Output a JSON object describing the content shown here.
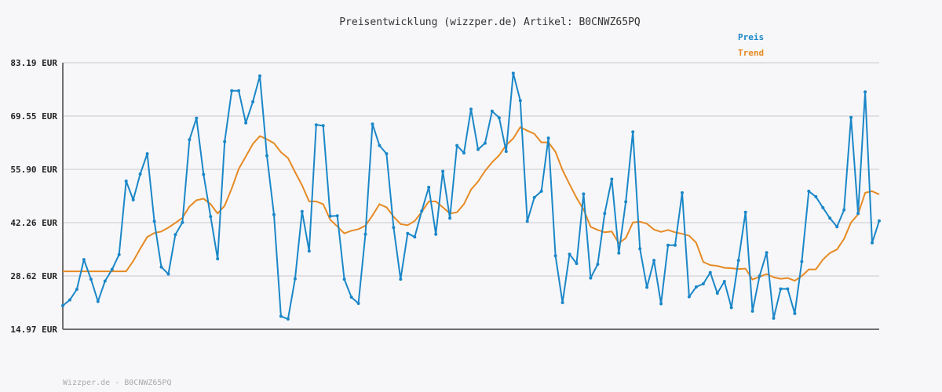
{
  "chart_data": {
    "type": "line",
    "title": "Preisentwicklung (wizzper.de) Artikel: B0CNWZ65PQ",
    "ylim": [
      14.97,
      83.19
    ],
    "yticks": [
      "83.19 EUR",
      "69.55 EUR",
      "55.90 EUR",
      "42.26 EUR",
      "28.62 EUR",
      "14.97 EUR"
    ],
    "ytick_values": [
      83.19,
      69.55,
      55.9,
      42.26,
      28.62,
      14.97
    ],
    "grid": true,
    "legend_placement": "top-right",
    "series": [
      {
        "name": "Preis",
        "color": "#1b87c8",
        "values": [
          21.0,
          22.5,
          25.2,
          32.8,
          27.8,
          22.1,
          27.3,
          30.3,
          34.1,
          52.9,
          48.1,
          54.7,
          59.9,
          42.6,
          30.9,
          29.1,
          39.2,
          42.3,
          63.5,
          69.0,
          54.6,
          43.8,
          33.0,
          63.0,
          76.0,
          76.0,
          67.8,
          73.2,
          79.8,
          59.4,
          44.3,
          18.3,
          17.6,
          27.9,
          45.1,
          35.0,
          67.3,
          67.1,
          43.9,
          44.0,
          27.8,
          23.2,
          21.6,
          39.3,
          67.5,
          62.0,
          59.9,
          41.0,
          27.8,
          39.5,
          38.6,
          45.2,
          51.3,
          39.3,
          55.4,
          43.4,
          62.0,
          60.1,
          71.3,
          61.0,
          62.6,
          70.8,
          69.1,
          60.5,
          80.5,
          73.5,
          42.6,
          48.7,
          50.3,
          63.9,
          33.8,
          21.8,
          34.2,
          31.8,
          49.6,
          28.1,
          31.6,
          44.6,
          53.4,
          34.5,
          47.6,
          65.5,
          35.6,
          25.7,
          32.6,
          21.5,
          36.5,
          36.5,
          49.9,
          23.3,
          25.8,
          26.6,
          29.5,
          24.2,
          27.2,
          20.5,
          32.6,
          44.9,
          19.6,
          28.6,
          34.6,
          17.8,
          25.3,
          25.3,
          19.0,
          32.3,
          50.3,
          48.9,
          46.1,
          43.4,
          41.2,
          45.5,
          69.2,
          44.6,
          75.7,
          37.1,
          42.7
        ]
      },
      {
        "name": "Trend",
        "color": "#e68a24",
        "values": [
          29.8,
          29.8,
          29.8,
          29.8,
          29.8,
          29.8,
          29.8,
          29.8,
          29.8,
          29.8,
          32.4,
          35.6,
          38.6,
          39.6,
          40.0,
          41.0,
          42.2,
          43.5,
          46.4,
          48.0,
          48.4,
          47.0,
          44.6,
          46.6,
          51.0,
          56.0,
          59.2,
          62.4,
          64.4,
          63.6,
          62.6,
          60.3,
          58.8,
          55.2,
          51.8,
          47.7,
          47.7,
          47.0,
          43.0,
          41.3,
          39.5,
          40.2,
          40.6,
          41.5,
          44.1,
          47.0,
          46.2,
          43.8,
          41.9,
          41.6,
          42.7,
          45.0,
          47.7,
          47.7,
          46.2,
          44.6,
          44.9,
          47.0,
          50.7,
          52.8,
          55.5,
          57.7,
          59.5,
          62.1,
          63.8,
          66.7,
          65.8,
          65.0,
          62.8,
          62.8,
          60.4,
          55.7,
          52.1,
          48.6,
          45.6,
          41.2,
          40.4,
          39.8,
          40.0,
          37.0,
          38.3,
          42.3,
          42.5,
          42.0,
          40.5,
          39.9,
          40.4,
          39.8,
          39.4,
          38.9,
          37.1,
          32.2,
          31.4,
          31.2,
          30.7,
          30.6,
          30.4,
          30.5,
          27.7,
          28.4,
          29.1,
          28.3,
          27.9,
          28.1,
          27.4,
          28.6,
          30.3,
          30.3,
          32.8,
          34.5,
          35.4,
          38.1,
          42.3,
          44.4,
          49.9,
          50.3,
          49.5
        ]
      }
    ]
  },
  "legend": {
    "preis_label": "Preis",
    "trend_label": "Trend"
  },
  "footer": "Wizzper.de - B0CNWZ65PQ"
}
